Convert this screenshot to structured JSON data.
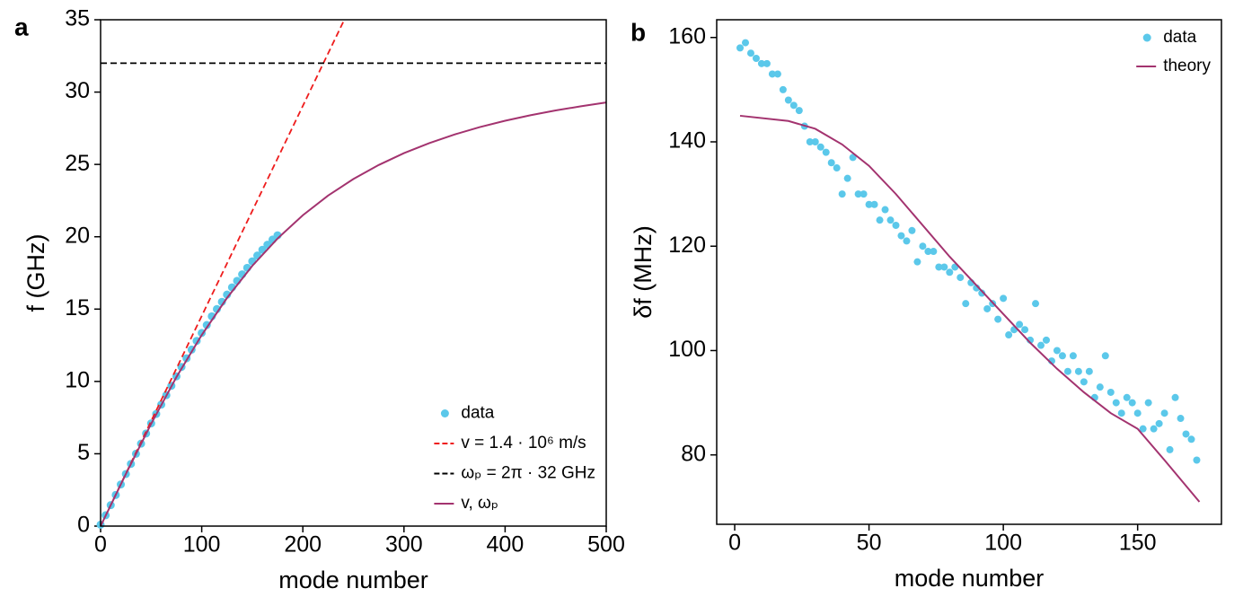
{
  "chart_data": [
    {
      "type": "line",
      "label": "a",
      "x_label": "mode number",
      "y_label": "f (GHz)",
      "xlim": [
        0,
        500
      ],
      "ylim": [
        0,
        35
      ],
      "xticks": [
        0,
        100,
        200,
        300,
        400,
        500
      ],
      "yticks": [
        0,
        5,
        10,
        15,
        20,
        25,
        30,
        35
      ],
      "legend": "lower right",
      "series": [
        {
          "name": "data",
          "color": "#5bc8ea",
          "style": "markers",
          "x": [
            0,
            5,
            10,
            15,
            20,
            25,
            30,
            35,
            40,
            45,
            50,
            55,
            60,
            65,
            70,
            75,
            80,
            85,
            90,
            95,
            100,
            105,
            110,
            115,
            120,
            125,
            130,
            135,
            140,
            145,
            150,
            155,
            160,
            165,
            170,
            175
          ],
          "values": [
            0.1,
            0.75,
            1.45,
            2.15,
            2.88,
            3.6,
            4.3,
            5.0,
            5.7,
            6.4,
            7.1,
            7.75,
            8.4,
            9.05,
            9.7,
            10.35,
            11.0,
            11.6,
            12.2,
            12.8,
            13.35,
            13.9,
            14.5,
            15.0,
            15.5,
            16.0,
            16.5,
            16.95,
            17.4,
            17.85,
            18.3,
            18.7,
            19.1,
            19.45,
            19.8,
            20.1
          ]
        },
        {
          "name": "v = 1.4 · 10⁶ m/s",
          "color": "#ee1c1c",
          "style": "line",
          "dashed": true,
          "x": [
            0,
            241
          ],
          "values": [
            0,
            35
          ]
        },
        {
          "name": "ωₚ = 2π · 32 GHz",
          "color": "#000000",
          "style": "line",
          "dashed": true,
          "x": [
            0,
            500
          ],
          "values": [
            32,
            32
          ]
        },
        {
          "name": "v, ωₚ",
          "color": "#a3336f",
          "style": "line",
          "x": [
            0,
            25,
            50,
            75,
            100,
            125,
            150,
            175,
            200,
            225,
            250,
            275,
            300,
            325,
            350,
            375,
            400,
            425,
            450,
            475,
            500
          ],
          "values": [
            0,
            3.6,
            7.07,
            10.3,
            13.21,
            15.77,
            17.99,
            19.88,
            21.49,
            22.85,
            23.99,
            24.96,
            25.78,
            26.47,
            27.07,
            27.58,
            28.02,
            28.4,
            28.73,
            29.02,
            29.28
          ]
        }
      ]
    },
    {
      "type": "line",
      "label": "b",
      "x_label": "mode number",
      "y_label": "δf (MHz)",
      "xlim": [
        -6.7,
        181.2
      ],
      "ylim": [
        66.7,
        163.4
      ],
      "xticks": [
        0,
        50,
        100,
        150
      ],
      "yticks": [
        80,
        100,
        120,
        140,
        160
      ],
      "legend": "upper right",
      "series": [
        {
          "name": "data",
          "color": "#5bc8ea",
          "style": "markers",
          "x": [
            2,
            4,
            6,
            8,
            10,
            12,
            14,
            16,
            18,
            20,
            22,
            24,
            26,
            28,
            30,
            32,
            34,
            36,
            38,
            40,
            42,
            44,
            46,
            48,
            50,
            52,
            54,
            56,
            58,
            60,
            62,
            64,
            66,
            68,
            70,
            72,
            74,
            76,
            78,
            80,
            82,
            84,
            86,
            88,
            90,
            92,
            94,
            96,
            98,
            100,
            102,
            104,
            106,
            108,
            110,
            112,
            114,
            116,
            118,
            120,
            122,
            124,
            126,
            128,
            130,
            132,
            134,
            136,
            138,
            140,
            142,
            144,
            146,
            148,
            150,
            152,
            154,
            156,
            158,
            160,
            162,
            164,
            166,
            168,
            170,
            172
          ],
          "values": [
            158,
            159,
            157,
            156,
            155,
            155,
            153,
            153,
            150,
            148,
            147,
            146,
            143,
            140,
            140,
            139,
            138,
            136,
            135,
            130,
            133,
            137,
            130,
            130,
            128,
            128,
            125,
            127,
            125,
            124,
            122,
            121,
            123,
            117,
            120,
            119,
            119,
            116,
            116,
            115,
            116,
            114,
            109,
            113,
            112,
            111,
            108,
            109,
            106,
            110,
            103,
            104,
            105,
            104,
            102,
            109,
            101,
            102,
            98,
            100,
            99,
            96,
            99,
            96,
            94,
            96,
            91,
            93,
            99,
            92,
            90,
            88,
            91,
            90,
            88,
            85,
            90,
            85,
            86,
            88,
            81,
            91,
            87,
            84,
            83,
            79
          ]
        },
        {
          "name": "theory",
          "color": "#a3336f",
          "style": "line",
          "x": [
            2,
            20,
            30,
            40,
            50,
            60,
            70,
            80,
            90,
            100,
            110,
            120,
            130,
            140,
            150,
            160,
            173
          ],
          "values": [
            145,
            144,
            142.5,
            139.5,
            135.4,
            130,
            124,
            118,
            112.5,
            107,
            101.5,
            96.5,
            92,
            88,
            85,
            79,
            71
          ]
        }
      ]
    }
  ]
}
